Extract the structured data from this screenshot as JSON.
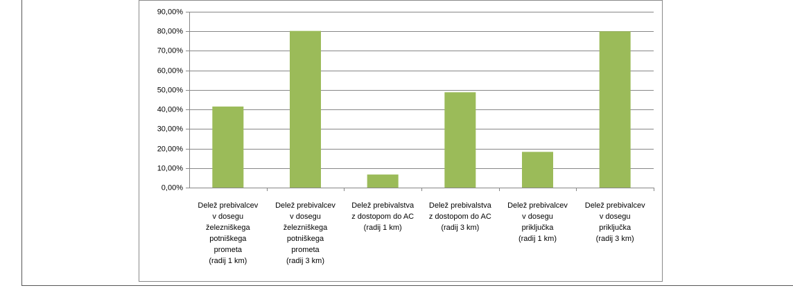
{
  "chart_data": {
    "type": "bar",
    "categories": [
      [
        "Delež prebivalcev",
        "v dosegu",
        "železniškega",
        "potniškega",
        "prometa",
        "(radij 1 km)"
      ],
      [
        "Delež prebivalcev",
        "v dosegu",
        "železniškega",
        "potniškega",
        "prometa",
        "(radij 3 km)"
      ],
      [
        "Delež prebivalstva",
        "z dostopom do AC",
        "(radij 1 km)"
      ],
      [
        "Delež prebivalstva",
        "z dostopom do AC",
        "(radij 3 km)"
      ],
      [
        "Delež prebivalcev",
        "v dosegu",
        "priključka",
        "(radij 1 km)"
      ],
      [
        "Delež prebivalcev",
        "v dosegu",
        "priključka",
        "(radij 3 km)"
      ]
    ],
    "values": [
      41.5,
      80.2,
      6.7,
      48.8,
      18.3,
      80.0
    ],
    "color": "#9bbb59",
    "ylim": [
      0,
      90
    ],
    "yticks": [
      {
        "value": 0,
        "label": "0,00%"
      },
      {
        "value": 10,
        "label": "10,00%"
      },
      {
        "value": 20,
        "label": "20,00%"
      },
      {
        "value": 30,
        "label": "30,00%"
      },
      {
        "value": 40,
        "label": "40,00%"
      },
      {
        "value": 50,
        "label": "50,00%"
      },
      {
        "value": 60,
        "label": "60,00%"
      },
      {
        "value": 70,
        "label": "70,00%"
      },
      {
        "value": 80,
        "label": "80,00%"
      },
      {
        "value": 90,
        "label": "90,00%"
      }
    ],
    "grid": true
  }
}
